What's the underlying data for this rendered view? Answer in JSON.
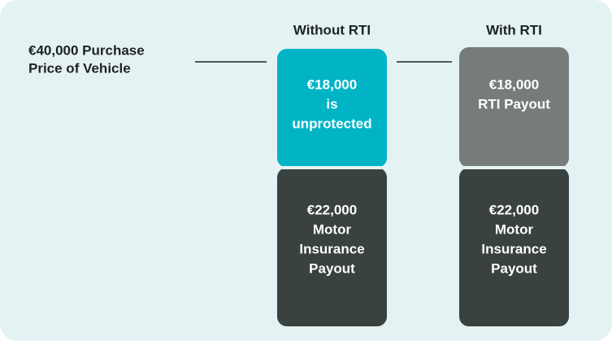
{
  "label": {
    "lines": [
      "€40,000 Purchase",
      "Price of Vehicle"
    ]
  },
  "columns": [
    {
      "header": "Without RTI",
      "top": {
        "lines": [
          "€18,000",
          "is",
          "unprotected"
        ]
      },
      "bottom": {
        "lines": [
          "€22,000",
          "Motor",
          "Insurance",
          "Payout"
        ]
      }
    },
    {
      "header": "With RTI",
      "top": {
        "lines": [
          "€18,000",
          "RTI Payout"
        ]
      },
      "bottom": {
        "lines": [
          "€22,000",
          "Motor",
          "Insurance",
          "Payout"
        ]
      }
    }
  ]
}
